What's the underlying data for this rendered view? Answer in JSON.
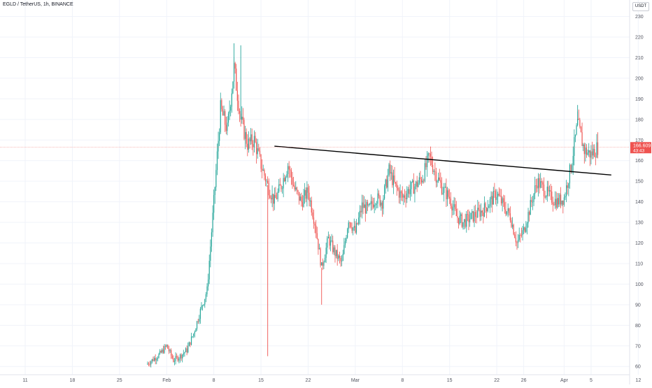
{
  "chart_data": {
    "type": "candlestick",
    "title": "EGLD / TetherUS, 1h, BINANCE",
    "unit": "USDT",
    "ylim": [
      56,
      238
    ],
    "y_ticks": [
      60,
      70,
      80,
      90,
      100,
      110,
      120,
      130,
      140,
      150,
      160,
      170,
      180,
      190,
      200,
      210,
      220,
      230
    ],
    "x_ticks": [
      "11",
      "18",
      "25",
      "Feb",
      "8",
      "15",
      "22",
      "Mar",
      "8",
      "15",
      "22",
      "26",
      "Apr",
      "5",
      "12"
    ],
    "last_price": "166.609",
    "countdown": "43:43",
    "price_path": [
      {
        "x": "Jan 29",
        "y": 61
      },
      {
        "x": "Jan 31",
        "y": 66
      },
      {
        "x": "Feb 1",
        "y": 70
      },
      {
        "x": "Feb 2",
        "y": 63
      },
      {
        "x": "Feb 3",
        "y": 65
      },
      {
        "x": "Feb 4",
        "y": 68
      },
      {
        "x": "Feb 5",
        "y": 76
      },
      {
        "x": "Feb 6",
        "y": 87
      },
      {
        "x": "Feb 7",
        "y": 97
      },
      {
        "x": "Feb 8",
        "y": 140
      },
      {
        "x": "Feb 9",
        "y": 185
      },
      {
        "x": "Feb 10",
        "y": 175
      },
      {
        "x": "Feb 11",
        "y": 205
      },
      {
        "x": "Feb 12",
        "y": 180
      },
      {
        "x": "Feb 13",
        "y": 168
      },
      {
        "x": "Feb 14",
        "y": 170
      },
      {
        "x": "Feb 15",
        "y": 158
      },
      {
        "x": "Feb 16",
        "y": 148
      },
      {
        "x": "Feb 17",
        "y": 140
      },
      {
        "x": "Feb 18",
        "y": 148
      },
      {
        "x": "Feb 19",
        "y": 158
      },
      {
        "x": "Feb 20",
        "y": 146
      },
      {
        "x": "Feb 21",
        "y": 140
      },
      {
        "x": "Feb 22",
        "y": 145
      },
      {
        "x": "Feb 23",
        "y": 130
      },
      {
        "x": "Feb 24",
        "y": 108
      },
      {
        "x": "Feb 25",
        "y": 122
      },
      {
        "x": "Feb 26",
        "y": 115
      },
      {
        "x": "Feb 27",
        "y": 110
      },
      {
        "x": "Feb 28",
        "y": 132
      },
      {
        "x": "Mar 1",
        "y": 125
      },
      {
        "x": "Mar 2",
        "y": 138
      },
      {
        "x": "Mar 3",
        "y": 136
      },
      {
        "x": "Mar 4",
        "y": 142
      },
      {
        "x": "Mar 5",
        "y": 140
      },
      {
        "x": "Mar 6",
        "y": 155
      },
      {
        "x": "Mar 7",
        "y": 147
      },
      {
        "x": "Mar 8",
        "y": 142
      },
      {
        "x": "Mar 9",
        "y": 146
      },
      {
        "x": "Mar 10",
        "y": 148
      },
      {
        "x": "Mar 11",
        "y": 152
      },
      {
        "x": "Mar 12",
        "y": 162
      },
      {
        "x": "Mar 13",
        "y": 153
      },
      {
        "x": "Mar 14",
        "y": 146
      },
      {
        "x": "Mar 15",
        "y": 142
      },
      {
        "x": "Mar 16",
        "y": 133
      },
      {
        "x": "Mar 17",
        "y": 130
      },
      {
        "x": "Mar 18",
        "y": 132
      },
      {
        "x": "Mar 19",
        "y": 134
      },
      {
        "x": "Mar 20",
        "y": 136
      },
      {
        "x": "Mar 21",
        "y": 140
      },
      {
        "x": "Mar 22",
        "y": 144
      },
      {
        "x": "Mar 23",
        "y": 138
      },
      {
        "x": "Mar 24",
        "y": 133
      },
      {
        "x": "Mar 25",
        "y": 120
      },
      {
        "x": "Mar 26",
        "y": 126
      },
      {
        "x": "Mar 27",
        "y": 138
      },
      {
        "x": "Mar 28",
        "y": 150
      },
      {
        "x": "Mar 29",
        "y": 146
      },
      {
        "x": "Mar 30",
        "y": 142
      },
      {
        "x": "Mar 31",
        "y": 140
      },
      {
        "x": "Apr 1",
        "y": 142
      },
      {
        "x": "Apr 2",
        "y": 157
      },
      {
        "x": "Apr 3",
        "y": 178
      },
      {
        "x": "Apr 4",
        "y": 165
      },
      {
        "x": "Apr 5",
        "y": 163
      },
      {
        "x": "Apr 6",
        "y": 166.6
      }
    ],
    "spikes": [
      {
        "x": "Feb 11",
        "high": 217
      },
      {
        "x": "Feb 12",
        "high": 216
      },
      {
        "x": "Feb 16",
        "low": 65
      },
      {
        "x": "Feb 24",
        "low": 90
      },
      {
        "x": "Apr 3",
        "high": 187
      }
    ],
    "trendline": [
      {
        "x": "Feb 17",
        "y": 167
      },
      {
        "x": "Apr 8",
        "y": 153
      }
    ]
  }
}
